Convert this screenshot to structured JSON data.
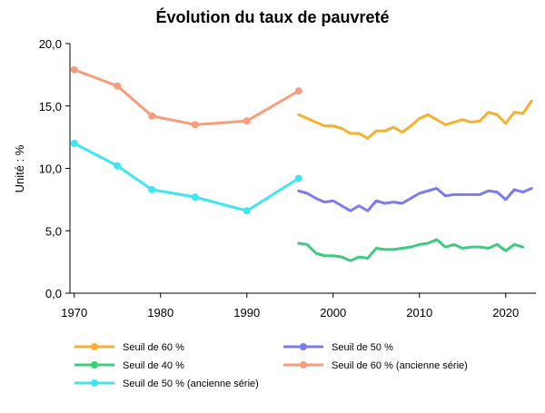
{
  "chart_data": {
    "type": "line",
    "title": "Évolution du taux de pauvreté",
    "xlabel": "",
    "ylabel": "Unité : %",
    "xlim": [
      1969.5,
      2023.5
    ],
    "ylim": [
      0,
      20
    ],
    "x_ticks": [
      1970,
      1980,
      1990,
      2000,
      2010,
      2020
    ],
    "y_ticks": [
      0,
      5,
      10,
      15,
      20
    ],
    "x_tick_labels": [
      "1970",
      "1980",
      "1990",
      "2000",
      "2010",
      "2020"
    ],
    "y_tick_labels": [
      "0,0",
      "5,0",
      "10,0",
      "15,0",
      "20,0"
    ],
    "grid": false,
    "legend_position": "bottom",
    "series": [
      {
        "name": "Seuil de 60 %",
        "color": "#F7B02E",
        "markers": false,
        "x": [
          1996,
          1997,
          1998,
          1999,
          2000,
          2001,
          2002,
          2003,
          2004,
          2005,
          2006,
          2007,
          2008,
          2009,
          2010,
          2011,
          2012,
          2013,
          2014,
          2015,
          2016,
          2017,
          2018,
          2019,
          2020,
          2021,
          2022,
          2023
        ],
        "y": [
          14.3,
          14.0,
          13.7,
          13.4,
          13.4,
          13.2,
          12.8,
          12.8,
          12.4,
          13.0,
          13.0,
          13.3,
          12.9,
          13.4,
          14.0,
          14.3,
          13.9,
          13.5,
          13.7,
          13.9,
          13.7,
          13.8,
          14.5,
          14.3,
          13.6,
          14.5,
          14.4,
          15.4
        ]
      },
      {
        "name": "Seuil de 50 %",
        "color": "#7C7CF0",
        "markers": false,
        "x": [
          1996,
          1997,
          1998,
          1999,
          2000,
          2001,
          2002,
          2003,
          2004,
          2005,
          2006,
          2007,
          2008,
          2009,
          2010,
          2011,
          2012,
          2013,
          2014,
          2015,
          2016,
          2017,
          2018,
          2019,
          2020,
          2021,
          2022,
          2023
        ],
        "y": [
          8.2,
          8.0,
          7.6,
          7.3,
          7.4,
          7.0,
          6.6,
          7.0,
          6.6,
          7.4,
          7.2,
          7.3,
          7.2,
          7.6,
          8.0,
          8.2,
          8.4,
          7.8,
          7.9,
          7.9,
          7.9,
          7.9,
          8.2,
          8.1,
          7.5,
          8.3,
          8.1,
          8.4
        ]
      },
      {
        "name": "Seuil de 40 %",
        "color": "#3DCC7E",
        "markers": false,
        "x": [
          1996,
          1997,
          1998,
          1999,
          2000,
          2001,
          2002,
          2003,
          2004,
          2005,
          2006,
          2007,
          2008,
          2009,
          2010,
          2011,
          2012,
          2013,
          2014,
          2015,
          2016,
          2017,
          2018,
          2019,
          2020,
          2021,
          2022
        ],
        "y": [
          4.0,
          3.9,
          3.2,
          3.0,
          3.0,
          2.9,
          2.6,
          2.9,
          2.8,
          3.6,
          3.5,
          3.5,
          3.6,
          3.7,
          3.9,
          4.0,
          4.3,
          3.7,
          3.9,
          3.6,
          3.7,
          3.7,
          3.6,
          3.9,
          3.4,
          3.9,
          3.7
        ]
      },
      {
        "name": "Seuil de 60 % (ancienne série)",
        "color": "#F89C7C",
        "markers": true,
        "x": [
          1970,
          1975,
          1979,
          1984,
          1990,
          1996
        ],
        "y": [
          17.9,
          16.6,
          14.2,
          13.5,
          13.8,
          16.2
        ]
      },
      {
        "name": "Seuil de 50 % (ancienne série)",
        "color": "#3EE6F0",
        "markers": true,
        "x": [
          1970,
          1975,
          1979,
          1984,
          1990,
          1996
        ],
        "y": [
          12.0,
          10.2,
          8.3,
          7.7,
          6.6,
          9.2
        ]
      }
    ]
  }
}
